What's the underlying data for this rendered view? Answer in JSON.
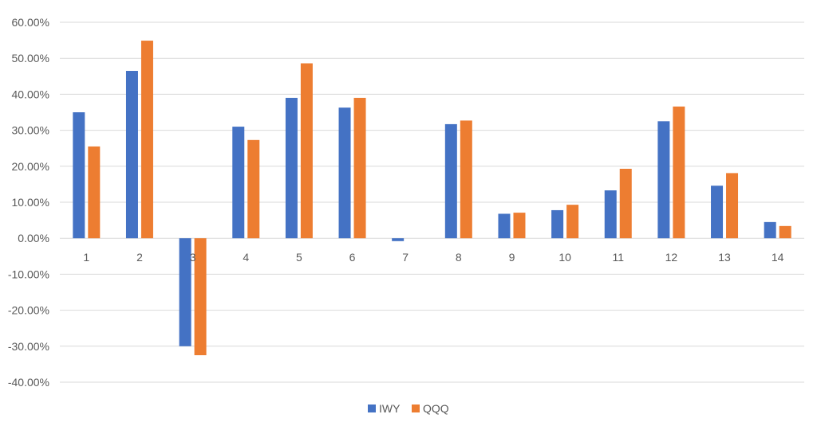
{
  "chart_data": {
    "type": "bar",
    "title": "",
    "xlabel": "",
    "ylabel": "",
    "categories": [
      "1",
      "2",
      "3",
      "4",
      "5",
      "6",
      "7",
      "8",
      "9",
      "10",
      "11",
      "12",
      "13",
      "14"
    ],
    "series": [
      {
        "name": "IWY",
        "color": "#4472C4",
        "values": [
          0.35,
          0.465,
          -0.3,
          0.31,
          0.39,
          0.363,
          -0.008,
          0.317,
          0.068,
          0.078,
          0.133,
          0.325,
          0.146,
          0.045
        ]
      },
      {
        "name": "QQQ",
        "color": "#ED7D31",
        "values": [
          0.255,
          0.549,
          -0.325,
          0.273,
          0.486,
          0.39,
          0.0,
          0.327,
          0.071,
          0.093,
          0.193,
          0.366,
          0.181,
          0.034
        ]
      }
    ],
    "ylim": [
      -0.4,
      0.6
    ],
    "yticks": [
      0.6,
      0.5,
      0.4,
      0.3,
      0.2,
      0.1,
      0.0,
      -0.1,
      -0.2,
      -0.3,
      -0.4
    ],
    "ytick_labels": [
      "60.00%",
      "50.00%",
      "40.00%",
      "30.00%",
      "20.00%",
      "10.00%",
      "0.00%",
      "-10.00%",
      "-20.00%",
      "-30.00%",
      "-40.00%"
    ],
    "grid": true,
    "legend_position": "bottom"
  }
}
